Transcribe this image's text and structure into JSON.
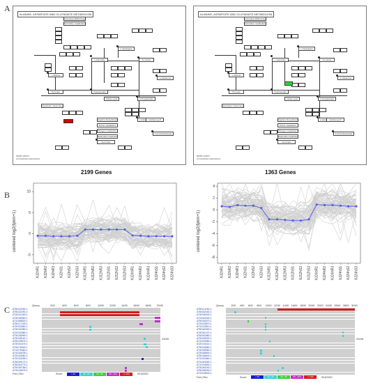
{
  "panels": {
    "a": "A",
    "b": "B",
    "c": "C"
  },
  "kegg_left": {
    "title": "ALANINE, ASPARTATE AND GLUTAMATE METABOLISM",
    "footer": [
      "00250 12/6/17",
      "(c) Kanehisa Laboratories"
    ],
    "highlight": "red"
  },
  "kegg_right": {
    "title": "ALANINE, ASPARTATE AND GLUTAMATE METABOLISM",
    "footer": [
      "00250 12/6/17",
      "(c) Kanehisa Laboratories"
    ],
    "highlight": "green"
  },
  "kegg_nodes": {
    "n1": "Aminoacyl-tRNA biosynthesis",
    "n2": "Pyrimidine metabolism",
    "n3": "L-Asparagine",
    "n4": "L-Aspartate",
    "n5": "Fumarate",
    "n6": "Oxaloacetate",
    "n7": "Citrate cycle",
    "n8": "2-Oxoglutarate",
    "n9": "L-Glutamate",
    "n10": "L-Glutamine",
    "n11": "Pyruvate",
    "n12": "L-Alanine",
    "n13": "Arginine biosynthesis",
    "n14": "Purine metabolism",
    "n15": "Nitrogen metabolism",
    "n16": "Butanoate metabolism",
    "n17": "Succinate",
    "n18": "4-Aminobutanoate",
    "n19": "Glycolysis / Gluconeogenesis",
    "n20": "Carbamoyl-P"
  },
  "left_plot": {
    "title": "2199 Genes",
    "ylabel": "centered log2(fpkm+1)"
  },
  "right_plot": {
    "title": "1363 Genes",
    "ylabel": "centered log2(fpkm+1)"
  },
  "chart_data": [
    {
      "type": "line",
      "title": "2199 Genes",
      "ylabel": "centered log2(fpkm+1)",
      "x": [
        "XJ2hR1",
        "XJ2hR2",
        "XJ2hR3",
        "XJ2hS1",
        "XJ2hS2",
        "XJ2hS3",
        "XJ12hR1",
        "XJ12hR2",
        "XJ12hR3",
        "XJ12hS1",
        "XJ12hS2",
        "XJ12hS3",
        "XJ24hR1",
        "XJ24hR2",
        "XJ24hR3",
        "XJ24hS1",
        "XJ24hS2",
        "XJ24hS3"
      ],
      "yticks": [
        -5,
        0,
        5,
        10
      ],
      "ylim": [
        -7,
        12
      ],
      "series": [
        {
          "values": [
            -0.5,
            -0.5,
            -0.6,
            -0.6,
            -0.6,
            -0.5,
            1.0,
            1.0,
            1.0,
            1.0,
            1.0,
            1.0,
            -0.4,
            -0.5,
            -0.6,
            -0.6,
            -0.6,
            -0.6
          ]
        }
      ],
      "background_color": "#cfcfcf",
      "mean_color": "#5560e8"
    },
    {
      "type": "line",
      "title": "1363 Genes",
      "ylabel": "centered log2(fpkm+1)",
      "x": [
        "XJ2hR1",
        "XJ2hR2",
        "XJ2hR3",
        "XJ2hS1",
        "XJ2hS2",
        "XJ2hS3",
        "XJ12hR1",
        "XJ12hR2",
        "XJ12hR3",
        "XJ12hS1",
        "XJ12hS2",
        "XJ12hS3",
        "XJ24hR1",
        "XJ24hR2",
        "XJ24hR3",
        "XJ24hS1",
        "XJ24hS2",
        "XJ24hS3"
      ],
      "yticks": [
        -8,
        -6,
        -4,
        -2,
        0,
        2,
        4
      ],
      "ylim": [
        -9,
        4.5
      ],
      "series": [
        {
          "values": [
            0.6,
            0.5,
            0.8,
            0.7,
            0.7,
            0.3,
            -1.6,
            -1.6,
            -1.7,
            -1.8,
            -1.8,
            -1.6,
            0.9,
            0.8,
            0.8,
            0.7,
            0.6,
            0.6
          ]
        }
      ],
      "background_color": "#cfcfcf",
      "mean_color": "#5560e8"
    }
  ],
  "blast_left": {
    "query_label": "Query",
    "ticks": [
      "200",
      "400",
      "600",
      "800",
      "1000",
      "1200",
      "1400",
      "1600",
      "1800",
      "2000"
    ],
    "accessions": [
      "AT5G22290.1",
      "AT5G22290.2",
      "AT4G01250.1",
      "AT3G45050.1",
      "AT1G68820.1",
      "AT5G17425.1",
      "AT2G33060.1",
      "AT3G40380.1",
      "AT2G02580.1",
      "AT3G45090.1",
      "AT3G45110.1",
      "AT5G40675.1",
      "AT3G01675.1",
      "AT4G76400.1",
      "AT1G75460.1",
      "AT1G30235.1",
      "AT2G33060.2",
      "AT2G33255.1",
      "AT5G69170.1",
      "AT5G64775.1",
      "AT5G50785.1",
      "AT4G40675.1"
    ],
    "side_count": "23/26",
    "legend_label": "Fwd | Rev",
    "score_label": "Score:",
    "legend": [
      "< 40",
      "40 - 50",
      "50 - 80",
      "80 - 200",
      ">= 200"
    ],
    "date": "5/16/2022"
  },
  "blast_right": {
    "query_label": "Query",
    "ticks": [
      "200",
      "400",
      "600",
      "800",
      "1000",
      "1200",
      "1400",
      "1600",
      "1800",
      "2000",
      "2200",
      "2400",
      "2600",
      "2800",
      "3000"
    ],
    "accessions": [
      "AT5G14760.1",
      "AT5G62330.1",
      "AT3G06200.1",
      "AT1G54330.1",
      "AT5G00070.1",
      "AT1G23870.1",
      "AT1G22810.1",
      "AT5G62090.1",
      "AT3G51470.1",
      "AT5G61880.1",
      "AT3G00020.1",
      "AT1G02660.1",
      "AT2G15110.1",
      "AT3G02860.1",
      "AT4G35060.1",
      "AT3G65800.1",
      "AT5G36540.1",
      "AT1G02560.1",
      "AT1G63260.1",
      "AT1G34900.1",
      "AT3G60200.1",
      "AT5G06290.1",
      "AT1G34640.1"
    ],
    "side_count": "23/46",
    "legend_label": "Fwd | Rev",
    "score_label": "Score:",
    "legend": [
      "< 40",
      "40 - 50",
      "50 - 80",
      "80 - 200",
      ">= 200"
    ],
    "date": "5/16/2022"
  },
  "legend_colors": [
    "#1b1bcf",
    "#3fd0d0",
    "#3bd13b",
    "#c231c2",
    "#d11d1d"
  ],
  "icons": {
    "nav_prev": "triangle-left-icon",
    "nav_next": "triangle-right-icon"
  }
}
